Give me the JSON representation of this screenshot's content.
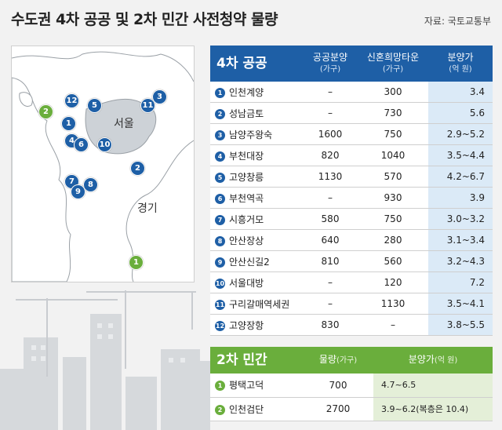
{
  "title": "수도권 4차 공공 및 2차 민간 사전청약 물량",
  "source": "자료: 국토교통부",
  "map": {
    "labels": {
      "seoul": "서울",
      "gyeonggi": "경기"
    },
    "pins": [
      {
        "n": "12",
        "color": "blue"
      },
      {
        "n": "5",
        "color": "blue"
      },
      {
        "n": "11",
        "color": "blue"
      },
      {
        "n": "3",
        "color": "blue"
      },
      {
        "n": "2",
        "color": "green"
      },
      {
        "n": "1",
        "color": "blue"
      },
      {
        "n": "4",
        "color": "blue"
      },
      {
        "n": "6",
        "color": "blue"
      },
      {
        "n": "10",
        "color": "blue"
      },
      {
        "n": "2",
        "color": "blue"
      },
      {
        "n": "7",
        "color": "blue"
      },
      {
        "n": "8",
        "color": "blue"
      },
      {
        "n": "9",
        "color": "blue"
      },
      {
        "n": "1",
        "color": "green"
      }
    ]
  },
  "public": {
    "header": {
      "name": "4차 공공",
      "col1": "공공분양",
      "col1_unit": "(가구)",
      "col2": "신혼희망타운",
      "col2_unit": "(가구)",
      "col3": "분양가",
      "col3_unit": "(억 원)"
    },
    "rows": [
      {
        "n": "1",
        "name": "인천계양",
        "public": "–",
        "newlywed": "300",
        "price": "3.4"
      },
      {
        "n": "2",
        "name": "성남금토",
        "public": "–",
        "newlywed": "730",
        "price": "5.6"
      },
      {
        "n": "3",
        "name": "남양주왕숙",
        "public": "1600",
        "newlywed": "750",
        "price": "2.9~5.2"
      },
      {
        "n": "4",
        "name": "부천대장",
        "public": "820",
        "newlywed": "1040",
        "price": "3.5~4.4"
      },
      {
        "n": "5",
        "name": "고양창릉",
        "public": "1130",
        "newlywed": "570",
        "price": "4.2~6.7"
      },
      {
        "n": "6",
        "name": "부천역곡",
        "public": "–",
        "newlywed": "930",
        "price": "3.9"
      },
      {
        "n": "7",
        "name": "시흥거모",
        "public": "580",
        "newlywed": "750",
        "price": "3.0~3.2"
      },
      {
        "n": "8",
        "name": "안산장상",
        "public": "640",
        "newlywed": "280",
        "price": "3.1~3.4"
      },
      {
        "n": "9",
        "name": "안산신길2",
        "public": "810",
        "newlywed": "560",
        "price": "3.2~4.3"
      },
      {
        "n": "10",
        "name": "서울대방",
        "public": "–",
        "newlywed": "120",
        "price": "7.2"
      },
      {
        "n": "11",
        "name": "구리갈매역세권",
        "public": "–",
        "newlywed": "1130",
        "price": "3.5~4.1"
      },
      {
        "n": "12",
        "name": "고양장항",
        "public": "830",
        "newlywed": "–",
        "price": "3.8~5.5"
      }
    ]
  },
  "private": {
    "header": {
      "name": "2차 민간",
      "col1": "물량",
      "col1_unit": "(가구)",
      "col2": "분양가",
      "col2_unit": "(억 원)"
    },
    "rows": [
      {
        "n": "1",
        "name": "평택고덕",
        "qty": "700",
        "price": "4.7~6.5"
      },
      {
        "n": "2",
        "name": "인천검단",
        "qty": "2700",
        "price": "3.9~6.2(복층은 10.4)"
      }
    ]
  },
  "colors": {
    "blue": "#1e5fa6",
    "green": "#6aae3c",
    "price_blue": "#dbeaf7",
    "price_green": "#e4efd8"
  }
}
